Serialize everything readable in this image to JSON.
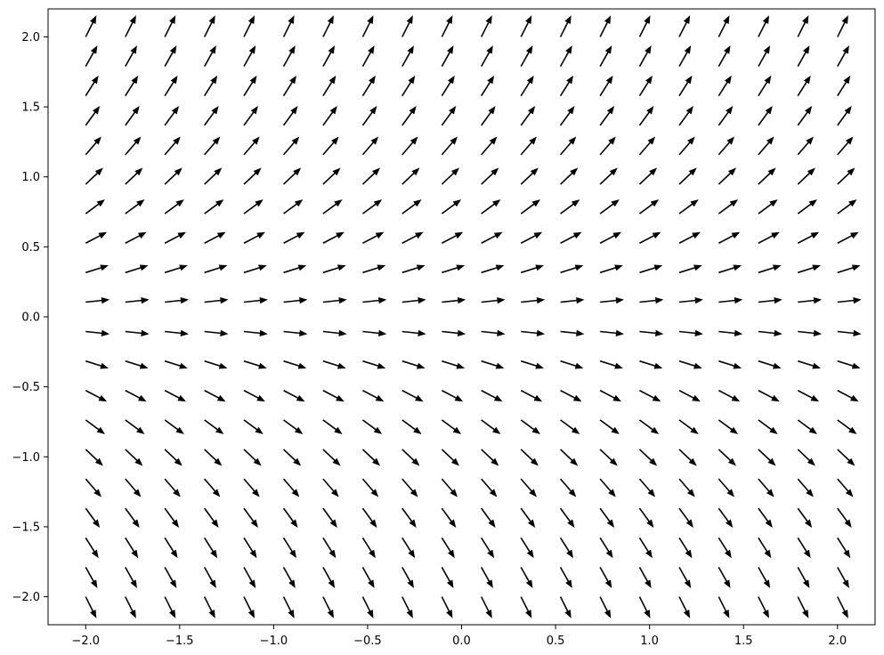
{
  "chart_data": {
    "type": "quiver",
    "title": "",
    "xlabel": "",
    "ylabel": "",
    "xlim": [
      -2.2,
      2.2
    ],
    "ylim": [
      -2.2,
      2.2
    ],
    "grid": false,
    "arrow_color": "#000000",
    "x": [
      -2.0,
      -1.789,
      -1.579,
      -1.368,
      -1.158,
      -0.947,
      -0.737,
      -0.526,
      -0.316,
      -0.105,
      0.105,
      0.316,
      0.526,
      0.737,
      0.947,
      1.158,
      1.368,
      1.579,
      1.789,
      2.0
    ],
    "y": [
      -2.0,
      -1.789,
      -1.579,
      -1.368,
      -1.158,
      -0.947,
      -0.737,
      -0.526,
      -0.316,
      -0.105,
      0.105,
      0.316,
      0.526,
      0.737,
      0.947,
      1.158,
      1.368,
      1.579,
      1.789,
      2.0
    ],
    "vector_field": {
      "u": "1",
      "v": "y"
    },
    "xticks": [
      {
        "value": -2.0,
        "label": "−2.0"
      },
      {
        "value": -1.5,
        "label": "−1.5"
      },
      {
        "value": -1.0,
        "label": "−1.0"
      },
      {
        "value": -0.5,
        "label": "−0.5"
      },
      {
        "value": 0.0,
        "label": "0.0"
      },
      {
        "value": 0.5,
        "label": "0.5"
      },
      {
        "value": 1.0,
        "label": "1.0"
      },
      {
        "value": 1.5,
        "label": "1.5"
      },
      {
        "value": 2.0,
        "label": "2.0"
      }
    ],
    "yticks": [
      {
        "value": -2.0,
        "label": "−2.0"
      },
      {
        "value": -1.5,
        "label": "−1.5"
      },
      {
        "value": -1.0,
        "label": "−1.0"
      },
      {
        "value": -0.5,
        "label": "−0.5"
      },
      {
        "value": 0.0,
        "label": "0.0"
      },
      {
        "value": 0.5,
        "label": "0.5"
      },
      {
        "value": 1.0,
        "label": "1.0"
      },
      {
        "value": 1.5,
        "label": "1.5"
      },
      {
        "value": 2.0,
        "label": "2.0"
      }
    ]
  }
}
